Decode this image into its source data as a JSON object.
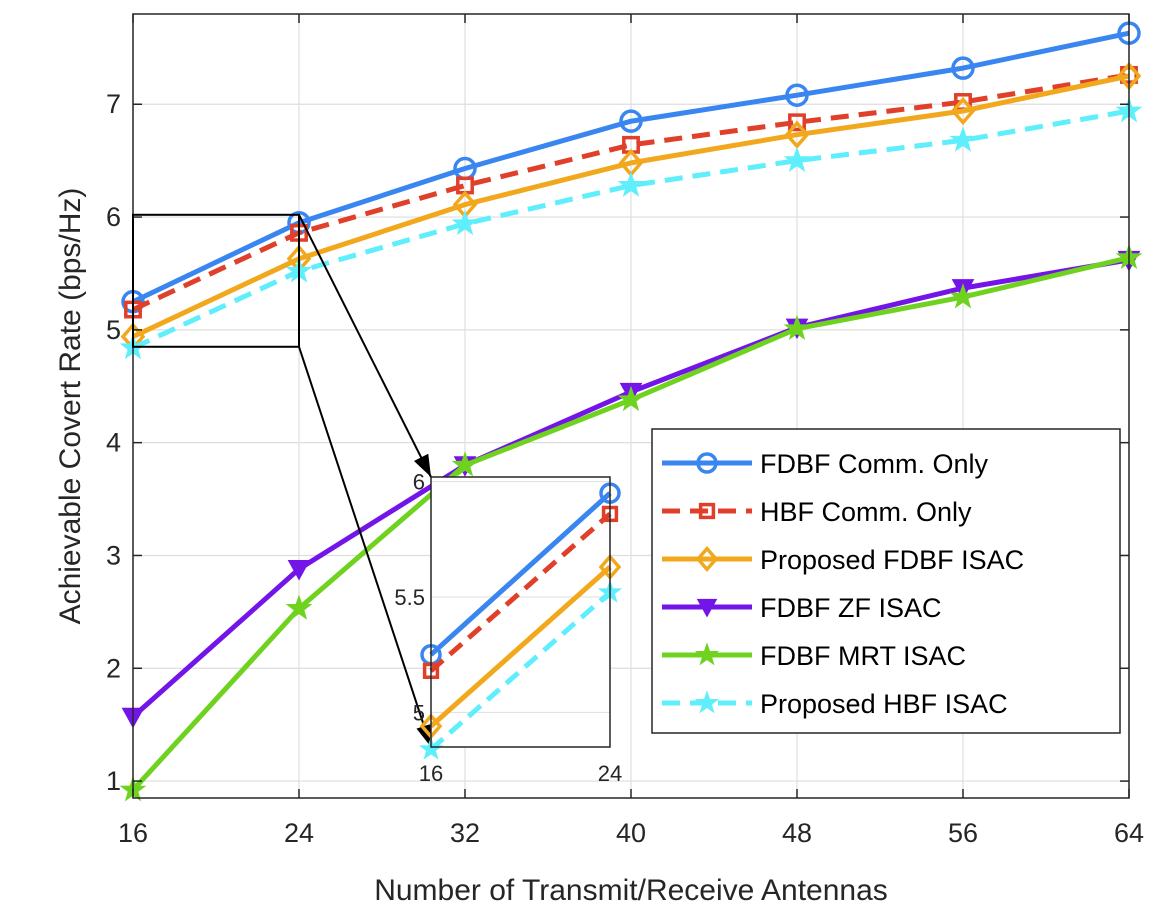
{
  "chart_data": {
    "type": "line",
    "title": "",
    "xlabel": "Number of Transmit/Receive Antennas",
    "ylabel": "Achievable Covert Rate (bps/Hz)",
    "x": [
      16,
      24,
      32,
      40,
      48,
      56,
      64
    ],
    "xlim": [
      16,
      64
    ],
    "ylim": [
      0.85,
      7.8
    ],
    "xticks": [
      "16",
      "24",
      "32",
      "40",
      "48",
      "56",
      "64"
    ],
    "yticks": [
      "1",
      "2",
      "3",
      "4",
      "5",
      "6",
      "7"
    ],
    "grid": true,
    "legend_position": "bottom-right",
    "series": [
      {
        "name": "FDBF Comm. Only",
        "color": "#3a86f0",
        "dash": "solid",
        "marker": "circle",
        "values": [
          5.25,
          5.95,
          6.43,
          6.85,
          7.08,
          7.32,
          7.63
        ]
      },
      {
        "name": "HBF Comm. Only",
        "color": "#e0402a",
        "dash": "dashed",
        "marker": "square",
        "values": [
          5.18,
          5.86,
          6.28,
          6.64,
          6.84,
          7.02,
          7.26
        ]
      },
      {
        "name": "Proposed FDBF ISAC",
        "color": "#f2a81c",
        "dash": "solid",
        "marker": "diamond",
        "values": [
          4.94,
          5.63,
          6.11,
          6.48,
          6.73,
          6.94,
          7.25
        ]
      },
      {
        "name": "FDBF ZF ISAC",
        "color": "#7314e8",
        "dash": "solid",
        "marker": "triangle-down",
        "values": [
          1.57,
          2.88,
          3.8,
          4.45,
          5.02,
          5.37,
          5.62
        ]
      },
      {
        "name": "FDBF MRT ISAC",
        "color": "#6fd21f",
        "dash": "solid",
        "marker": "star",
        "values": [
          0.92,
          2.53,
          3.8,
          4.38,
          5.01,
          5.29,
          5.64
        ]
      },
      {
        "name": "Proposed HBF ISAC",
        "color": "#5eeefc",
        "dash": "dashed",
        "marker": "star",
        "values": [
          4.84,
          5.52,
          5.94,
          6.28,
          6.5,
          6.68,
          6.94
        ]
      }
    ],
    "inset": {
      "xlim": [
        16,
        24
      ],
      "ylim": [
        4.85,
        6.02
      ],
      "xticks": [
        "16",
        "24"
      ],
      "yticks": [
        "5",
        "5.5",
        "6"
      ],
      "zoom_region": {
        "x": [
          16,
          24
        ],
        "y": [
          4.85,
          6.02
        ]
      }
    }
  }
}
